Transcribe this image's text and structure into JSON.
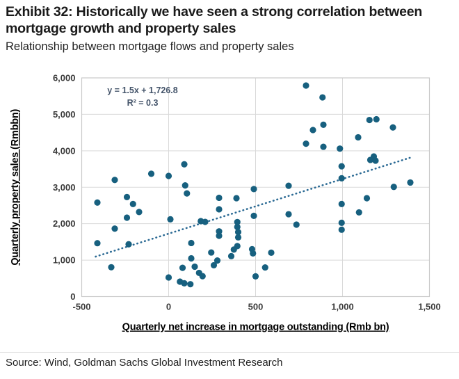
{
  "header": {
    "title": "Exhibit 32: Historically we have seen a strong correlation between mortgage growth and property sales",
    "subtitle": "Relationship between mortgage flows and property sales"
  },
  "source_line": "Source: Wind, Goldman Sachs Global Investment Research",
  "colors": {
    "point": "#17607f",
    "trendline": "#2b6a94",
    "gridline": "#d9d9d9",
    "plot_border": "#c9c9c9",
    "tick_text": "#3a3a3a",
    "axis_text": "#000000",
    "equation_text": "#44546a"
  },
  "chart_data": {
    "type": "scatter",
    "title": "Exhibit 32: Historically we have seen a strong correlation between mortgage growth and property sales",
    "subtitle": "Relationship between mortgage flows and property sales",
    "xlabel": "Quarterly net increase in mortgage outstanding (Rmb bn)",
    "ylabel": "Quarterly property sales (Rmbbn)",
    "xlim": [
      -500,
      1500
    ],
    "ylim": [
      0,
      6000
    ],
    "grid": true,
    "xticks": [
      {
        "v": -500,
        "label": "-500"
      },
      {
        "v": 0,
        "label": "0"
      },
      {
        "v": 500,
        "label": "500"
      },
      {
        "v": 1000,
        "label": "1,000"
      },
      {
        "v": 1500,
        "label": "1,500"
      }
    ],
    "yticks": [
      {
        "v": 0,
        "label": "0"
      },
      {
        "v": 1000,
        "label": "1,000"
      },
      {
        "v": 2000,
        "label": "2,000"
      },
      {
        "v": 3000,
        "label": "3,000"
      },
      {
        "v": 4000,
        "label": "4,000"
      },
      {
        "v": 5000,
        "label": "5,000"
      },
      {
        "v": 6000,
        "label": "6,000"
      }
    ],
    "trendline": {
      "slope": 1.5,
      "intercept": 1726.8,
      "x_start": -420,
      "x_end": 1400,
      "equation_label": "y = 1.5x + 1,726.8",
      "r2_label": "R² = 0.3"
    },
    "points": [
      [
        -410,
        2580
      ],
      [
        -310,
        3200
      ],
      [
        -240,
        2730
      ],
      [
        -205,
        2540
      ],
      [
        -170,
        2320
      ],
      [
        -240,
        2165
      ],
      [
        -310,
        1865
      ],
      [
        -410,
        1465
      ],
      [
        -230,
        1435
      ],
      [
        -330,
        805
      ],
      [
        -100,
        3370
      ],
      [
        0,
        3310
      ],
      [
        90,
        3630
      ],
      [
        95,
        3050
      ],
      [
        105,
        2830
      ],
      [
        10,
        2120
      ],
      [
        185,
        2070
      ],
      [
        210,
        2050
      ],
      [
        130,
        1470
      ],
      [
        130,
        1050
      ],
      [
        80,
        790
      ],
      [
        150,
        820
      ],
      [
        0,
        525
      ],
      [
        65,
        410
      ],
      [
        90,
        365
      ],
      [
        125,
        340
      ],
      [
        175,
        650
      ],
      [
        195,
        560
      ],
      [
        245,
        1210
      ],
      [
        280,
        990
      ],
      [
        260,
        860
      ],
      [
        290,
        2710
      ],
      [
        290,
        2395
      ],
      [
        290,
        1790
      ],
      [
        290,
        1670
      ],
      [
        395,
        2045
      ],
      [
        395,
        1910
      ],
      [
        400,
        1770
      ],
      [
        400,
        1625
      ],
      [
        395,
        1385
      ],
      [
        375,
        1290
      ],
      [
        360,
        1110
      ],
      [
        390,
        2700
      ],
      [
        490,
        2950
      ],
      [
        490,
        2215
      ],
      [
        480,
        1300
      ],
      [
        485,
        1185
      ],
      [
        500,
        555
      ],
      [
        555,
        800
      ],
      [
        590,
        1205
      ],
      [
        690,
        3040
      ],
      [
        690,
        2260
      ],
      [
        735,
        1975
      ],
      [
        790,
        5790
      ],
      [
        885,
        5465
      ],
      [
        790,
        4195
      ],
      [
        830,
        4570
      ],
      [
        890,
        4715
      ],
      [
        890,
        4110
      ],
      [
        985,
        4060
      ],
      [
        995,
        3575
      ],
      [
        995,
        3245
      ],
      [
        1090,
        4370
      ],
      [
        1155,
        4845
      ],
      [
        1195,
        4865
      ],
      [
        1290,
        4640
      ],
      [
        1160,
        3750
      ],
      [
        1180,
        3845
      ],
      [
        1190,
        3730
      ],
      [
        995,
        2540
      ],
      [
        1095,
        2310
      ],
      [
        1140,
        2700
      ],
      [
        995,
        2025
      ],
      [
        995,
        1835
      ],
      [
        1295,
        3010
      ],
      [
        1390,
        3130
      ]
    ]
  }
}
